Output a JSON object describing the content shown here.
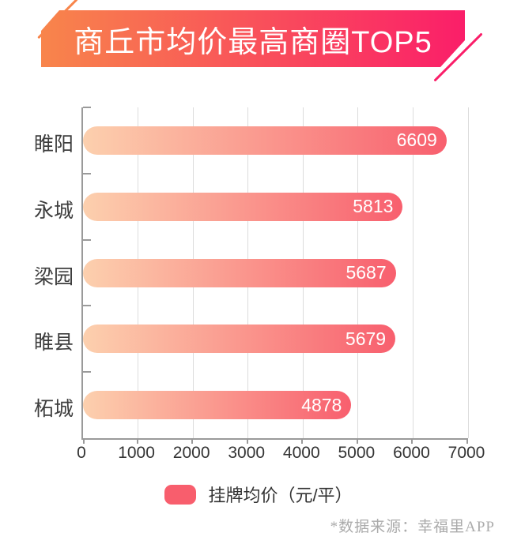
{
  "banner": {
    "title": "商丘市均价最高商圈TOP5",
    "gradient_start": "#F8854B",
    "gradient_end": "#FA1E69"
  },
  "chart_data": {
    "type": "bar",
    "orientation": "horizontal",
    "title": "商丘市均价最高商圈TOP5",
    "categories": [
      "睢阳",
      "永城",
      "梁园",
      "睢县",
      "柘城"
    ],
    "values": [
      6609,
      5813,
      5687,
      5679,
      4878
    ],
    "series_name": "挂牌均价（元/平）",
    "xlim": [
      0,
      7000
    ],
    "x_tick_labels": [
      "0",
      "1000",
      "2000",
      "3000",
      "4000",
      "5000",
      "6000",
      "7000"
    ],
    "grid": "vertical-on",
    "legend_position": "bottom",
    "bar_gradient_start": "#FCD0AE",
    "bar_gradient_end": "#F85F6E",
    "axis_color": "#9a9a9a",
    "grid_color": "#dcdcdc"
  },
  "legend": {
    "label": "挂牌均价（元/平）",
    "swatch_color": "#F85E6D"
  },
  "footer": {
    "source_note": "*数据来源：幸福里APP"
  }
}
